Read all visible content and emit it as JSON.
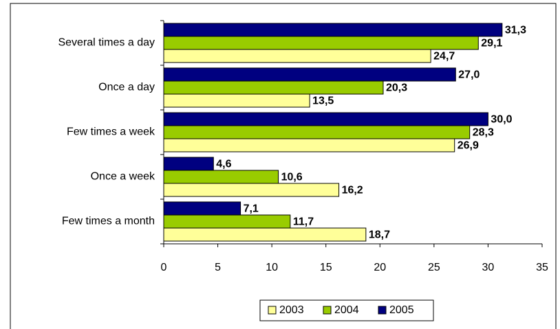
{
  "chart_data": {
    "type": "bar",
    "orientation": "horizontal",
    "categories": [
      "Several times a day",
      "Once a day",
      "Few times a week",
      "Once a week",
      "Few times a month"
    ],
    "series": [
      {
        "name": "2003",
        "color": "#ffff99",
        "values": [
          24.7,
          13.5,
          26.9,
          16.2,
          18.7
        ],
        "value_labels": [
          "24,7",
          "13,5",
          "26,9",
          "16,2",
          "18,7"
        ]
      },
      {
        "name": "2004",
        "color": "#99cc00",
        "values": [
          29.1,
          20.3,
          28.3,
          10.6,
          11.7
        ],
        "value_labels": [
          "29,1",
          "20,3",
          "28,3",
          "10,6",
          "11,7"
        ]
      },
      {
        "name": "2005",
        "color": "#000080",
        "values": [
          31.3,
          27.0,
          30.0,
          4.6,
          7.1
        ],
        "value_labels": [
          "31,3",
          "27,0",
          "30,0",
          "4,6",
          "7,1"
        ]
      }
    ],
    "xlim": [
      0,
      35
    ],
    "xticks": [
      0,
      5,
      10,
      15,
      20,
      25,
      30,
      35
    ],
    "legend": "bottom"
  }
}
